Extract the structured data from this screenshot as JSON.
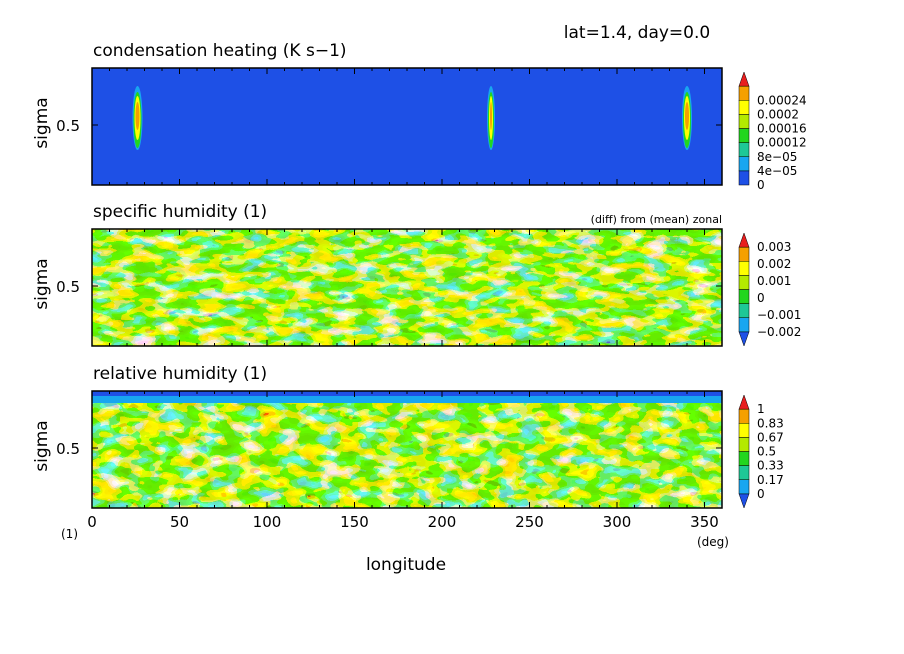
{
  "header": {
    "info": "lat=1.4, day=0.0"
  },
  "x_axis": {
    "label": "longitude",
    "unit": "(deg)",
    "corner_unit": "(1)",
    "ticks": [
      0,
      50,
      100,
      150,
      200,
      250,
      300,
      350
    ],
    "range": [
      0,
      360
    ]
  },
  "panels": [
    {
      "title": "condensation heating (K s−1)",
      "note": "",
      "ylabel": "sigma",
      "ytick": "0.5",
      "colorbar": {
        "colors": [
          "#1e50e6",
          "#18a6f0",
          "#1ec896",
          "#22d61e",
          "#b4ea00",
          "#ffff00",
          "#f5a000",
          "#e81e1e"
        ],
        "labels": [
          "0",
          "4e−05",
          "8e−05",
          "0.00012",
          "0.00016",
          "0.0002",
          "0.00024"
        ]
      }
    },
    {
      "title": "specific humidity (1)",
      "note": "(diff) from (mean) zonal",
      "ylabel": "sigma",
      "ytick": "0.5",
      "colorbar": {
        "colors": [
          "#1e50e6",
          "#18a6f0",
          "#1ec896",
          "#22d61e",
          "#b4ea00",
          "#ffff00",
          "#f5a000",
          "#e81e1e"
        ],
        "labels": [
          "−0.002",
          "−0.001",
          "0",
          "0.001",
          "0.002",
          "0.003"
        ]
      }
    },
    {
      "title": "relative humidity (1)",
      "note": "",
      "ylabel": "sigma",
      "ytick": "0.5",
      "colorbar": {
        "colors": [
          "#1e50e6",
          "#18a6f0",
          "#1ec896",
          "#22d61e",
          "#b4ea00",
          "#ffff00",
          "#f5a000",
          "#e81e1e"
        ],
        "labels": [
          "0",
          "0.17",
          "0.33",
          "0.5",
          "0.67",
          "0.83",
          "1"
        ]
      }
    }
  ],
  "chart_data": [
    {
      "type": "heatmap",
      "title": "condensation heating (K s−1)",
      "xlabel": "longitude",
      "ylabel": "sigma",
      "xlim": [
        0,
        360
      ],
      "levels": [
        0,
        4e-05,
        8e-05,
        0.00012,
        0.00016,
        0.0002,
        0.00024
      ],
      "field": "mostly 0 with narrow vertical maxima",
      "maxima_longitudes": [
        26,
        228,
        340
      ],
      "maxima_value": 0.00024
    },
    {
      "type": "heatmap",
      "title": "specific humidity (1)",
      "subtitle": "(diff) from (mean) zonal",
      "xlabel": "longitude",
      "ylabel": "sigma",
      "xlim": [
        0,
        360
      ],
      "levels": [
        -0.002,
        -0.001,
        0,
        0.001,
        0.002,
        0.003
      ]
    },
    {
      "type": "heatmap",
      "title": "relative humidity (1)",
      "xlabel": "longitude",
      "ylabel": "sigma",
      "xlim": [
        0,
        360
      ],
      "levels": [
        0,
        0.17,
        0.33,
        0.5,
        0.67,
        0.83,
        1
      ]
    }
  ]
}
